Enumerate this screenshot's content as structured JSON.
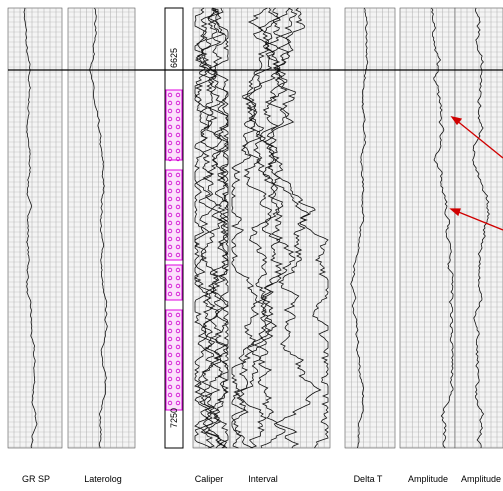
{
  "tracks": {
    "labels": [
      "GR SP",
      "Laterolog",
      "Caliper",
      "Interval",
      "Delta T",
      "Amplitude",
      "Amplitude"
    ]
  },
  "depth": {
    "labels": [
      "6625",
      "7250"
    ]
  }
}
